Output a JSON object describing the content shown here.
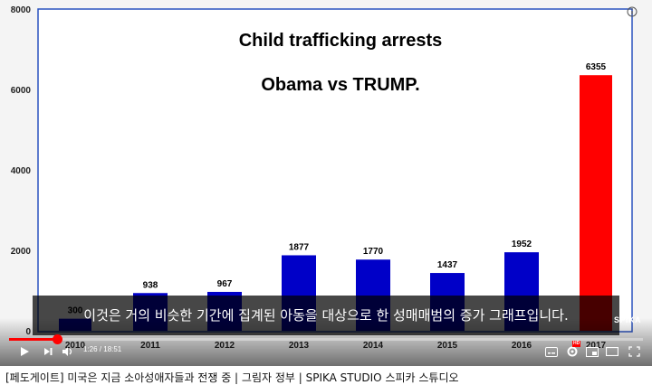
{
  "chart_data": {
    "type": "bar",
    "title": "Child trafficking arrests",
    "subtitle": "Obama vs TRUMP.",
    "categories": [
      "2010",
      "2011",
      "2012",
      "2013",
      "2014",
      "2015",
      "2016",
      "2017"
    ],
    "values": [
      300,
      938,
      967,
      1877,
      1770,
      1437,
      1952,
      6355
    ],
    "value_labels": [
      "300",
      "938",
      "967",
      "1877",
      "1770",
      "1437",
      "1952",
      "6355"
    ],
    "bar_colors": [
      "#0000c8",
      "#0000c8",
      "#0000c8",
      "#0000c8",
      "#0000c8",
      "#0000c8",
      "#0000c8",
      "#ff0000"
    ],
    "yticks": [
      "0",
      "2000",
      "4000",
      "6000",
      "8000"
    ],
    "ylim": [
      0,
      8000
    ],
    "grid": false
  },
  "player": {
    "subtitle_text": "이것은 거의 비슷한 기간에 집계된 아동을 대상으로 한 성매매범의 증가 그래프입니다.",
    "watermark": "SPIKA",
    "time_display": "1:26 / 18:51",
    "progress": 0.076,
    "progress_color": "#ff0000",
    "hd_badge": "HD",
    "info_icon": "info-icon"
  },
  "video_title": "[페도게이트] 미국은 지금 소아성애자들과 전쟁 중 | 그림자 정부 | SPIKA STUDIO 스피카 스튜디오"
}
